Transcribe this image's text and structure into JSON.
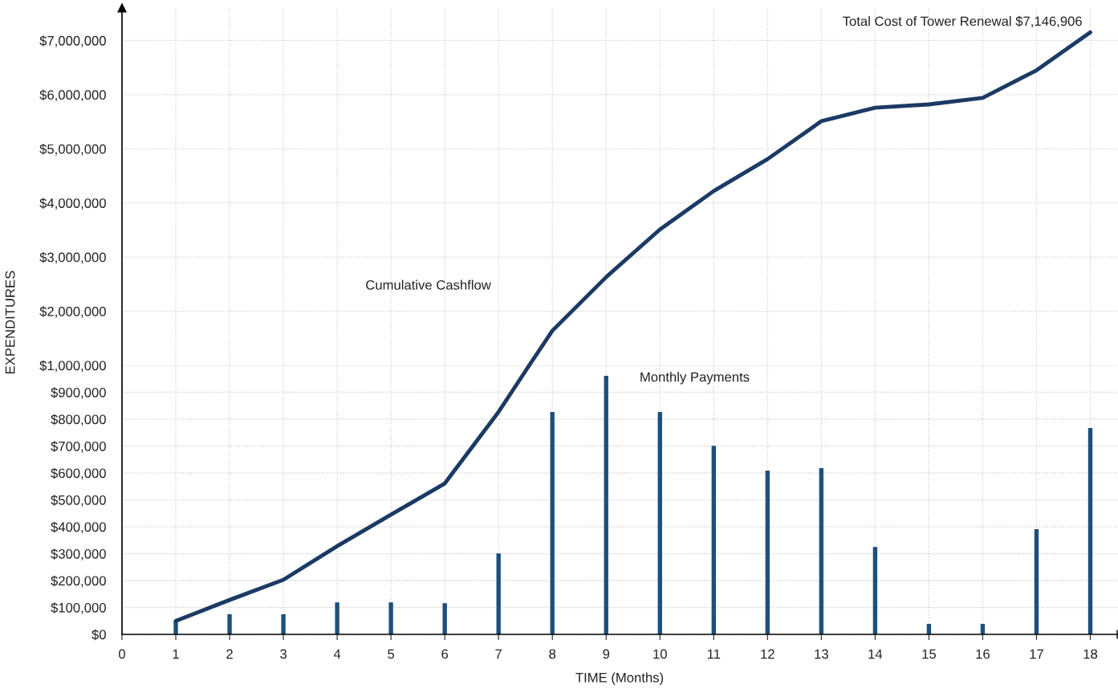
{
  "chart_data": [
    {
      "type": "line",
      "ylabel": "EXPENDITURES",
      "series": [
        {
          "name": "Cumulative Cashflow",
          "color": "#1b3a64",
          "x": [
            7.57,
            8,
            9,
            10,
            11,
            12,
            13,
            14,
            15,
            16,
            17,
            18
          ],
          "values": [
            1000000,
            1640000,
            2630000,
            3510000,
            4220000,
            4810000,
            5510000,
            5760000,
            5820000,
            5940000,
            6450000,
            7150000
          ]
        }
      ],
      "annotations": [
        "Total Cost of Tower Renewal $7,146,906"
      ],
      "xlim": [
        0,
        18.5
      ],
      "xticks": [
        0,
        1,
        2,
        3,
        4,
        5,
        6,
        7,
        8,
        9,
        10,
        11,
        12,
        13,
        14,
        15,
        16,
        17,
        18
      ],
      "ylim": [
        1000000,
        7600000
      ],
      "yticks": [
        {
          "value": 2000000,
          "label": "$2,000,000"
        },
        {
          "value": 3000000,
          "label": "$3,000,000"
        },
        {
          "value": 4000000,
          "label": "$4,000,000"
        },
        {
          "value": 5000000,
          "label": "$5,000,000"
        },
        {
          "value": 6000000,
          "label": "$6,000,000"
        },
        {
          "value": 7000000,
          "label": "$7,000,000"
        }
      ],
      "tick_labels": "y",
      "grid": true
    },
    {
      "type": "bar",
      "xlabel": "TIME (Months)",
      "x": [
        1,
        2,
        3,
        4,
        5,
        6,
        7,
        8,
        9,
        10,
        11,
        12,
        13,
        14,
        15,
        16,
        17,
        18
      ],
      "series": [
        {
          "name": "Monthly Payments",
          "color": "#1d4f7c",
          "values": [
            50000,
            75000,
            75000,
            119000,
            119000,
            116000,
            301000,
            827000,
            961000,
            827000,
            701000,
            609000,
            618000,
            325000,
            39000,
            39000,
            391000,
            767000
          ]
        },
        {
          "type": "line",
          "color": "#1b3a64",
          "x": [
            1,
            2,
            3,
            4,
            5,
            6,
            7,
            7.57
          ],
          "values": [
            50000,
            128000,
            203000,
            328000,
            445000,
            561000,
            827000,
            1000000
          ]
        }
      ],
      "xlim": [
        0,
        18.5
      ],
      "xticks": [
        0,
        1,
        2,
        3,
        4,
        5,
        6,
        7,
        8,
        9,
        10,
        11,
        12,
        13,
        14,
        15,
        16,
        17,
        18
      ],
      "ylim": [
        0,
        1000000
      ],
      "yticks": [
        {
          "value": 0,
          "label": "$0"
        },
        {
          "value": 100000,
          "label": "$100,000"
        },
        {
          "value": 200000,
          "label": "$200,000"
        },
        {
          "value": 300000,
          "label": "$300,000"
        },
        {
          "value": 400000,
          "label": "$400,000"
        },
        {
          "value": 500000,
          "label": "$500,000"
        },
        {
          "value": 600000,
          "label": "$600,000"
        },
        {
          "value": 700000,
          "label": "$700,000"
        },
        {
          "value": 800000,
          "label": "$800,000"
        },
        {
          "value": 900000,
          "label": "$900,000"
        },
        {
          "value": 1000000,
          "label": "$1,000,000"
        }
      ],
      "grid": true
    }
  ]
}
